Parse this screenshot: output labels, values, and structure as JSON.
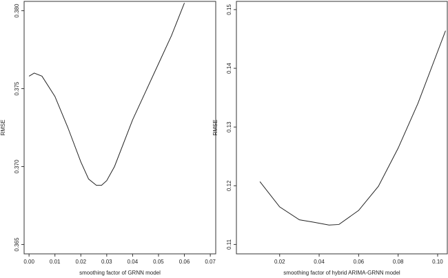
{
  "chart_data": [
    {
      "type": "line",
      "xlabel": "smoothing factor of GRNN model",
      "ylabel": "RMSE",
      "x": [
        0.0,
        0.002,
        0.005,
        0.01,
        0.015,
        0.02,
        0.023,
        0.026,
        0.028,
        0.03,
        0.033,
        0.04,
        0.045,
        0.05,
        0.055,
        0.06
      ],
      "values": [
        0.3758,
        0.376,
        0.3758,
        0.3745,
        0.3725,
        0.3703,
        0.3692,
        0.3688,
        0.3688,
        0.3691,
        0.37,
        0.373,
        0.3748,
        0.3766,
        0.3784,
        0.3805
      ],
      "color": "#222222",
      "xlim": [
        -0.0019,
        0.0721
      ],
      "ylim": [
        0.3644,
        0.3806
      ],
      "xticks": [
        {
          "value": 0,
          "label": "0.00"
        },
        0.01,
        0.02,
        0.03,
        0.04,
        0.05,
        0.06,
        0.07
      ],
      "yticks": [
        0.365,
        {
          "value": 0.37,
          "label": "0.370"
        },
        0.375,
        {
          "value": 0.38,
          "label": "0.380"
        }
      ]
    },
    {
      "type": "line",
      "xlabel": "smoothing factor of hybrid ARIMA-GRNN model",
      "ylabel": "RMSE",
      "x": [
        0.01,
        0.02,
        0.03,
        0.037,
        0.045,
        0.05,
        0.06,
        0.07,
        0.08,
        0.09,
        0.104
      ],
      "values": [
        0.1207,
        0.1164,
        0.1142,
        0.1138,
        0.1133,
        0.1134,
        0.1158,
        0.1199,
        0.1264,
        0.134,
        0.1464
      ],
      "color": "#222222",
      "xlim": [
        -0.0019,
        0.1049
      ],
      "ylim": [
        0.1084,
        0.1514
      ],
      "xticks": [
        0.02,
        0.04,
        0.06,
        0.08,
        {
          "value": 0.1,
          "label": "0.10"
        }
      ],
      "yticks": [
        0.11,
        0.12,
        0.13,
        0.14,
        0.15
      ]
    }
  ]
}
